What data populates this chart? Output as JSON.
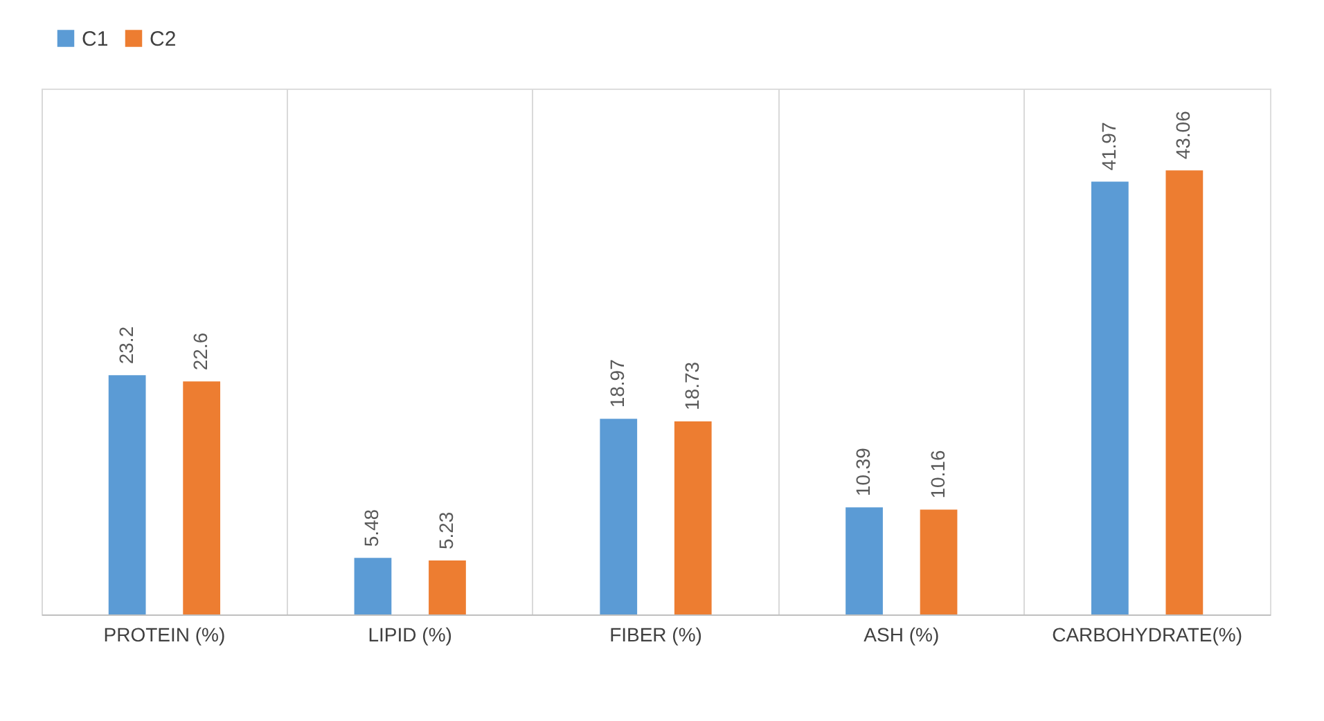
{
  "chart_data": {
    "type": "bar",
    "categories": [
      "PROTEIN (%)",
      "LIPID (%)",
      "FIBER (%)",
      "ASH (%)",
      "CARBOHYDRATE(%)"
    ],
    "series": [
      {
        "name": "C1",
        "color": "#5b9bd5",
        "values": [
          23.2,
          5.48,
          18.97,
          10.39,
          41.97
        ]
      },
      {
        "name": "C2",
        "color": "#ed7d31",
        "values": [
          22.6,
          5.23,
          18.73,
          10.16,
          43.06
        ]
      }
    ],
    "ylim": [
      0,
      51
    ],
    "data_labels": true,
    "grid": "x",
    "legend": "top",
    "tick_labels": "x"
  }
}
